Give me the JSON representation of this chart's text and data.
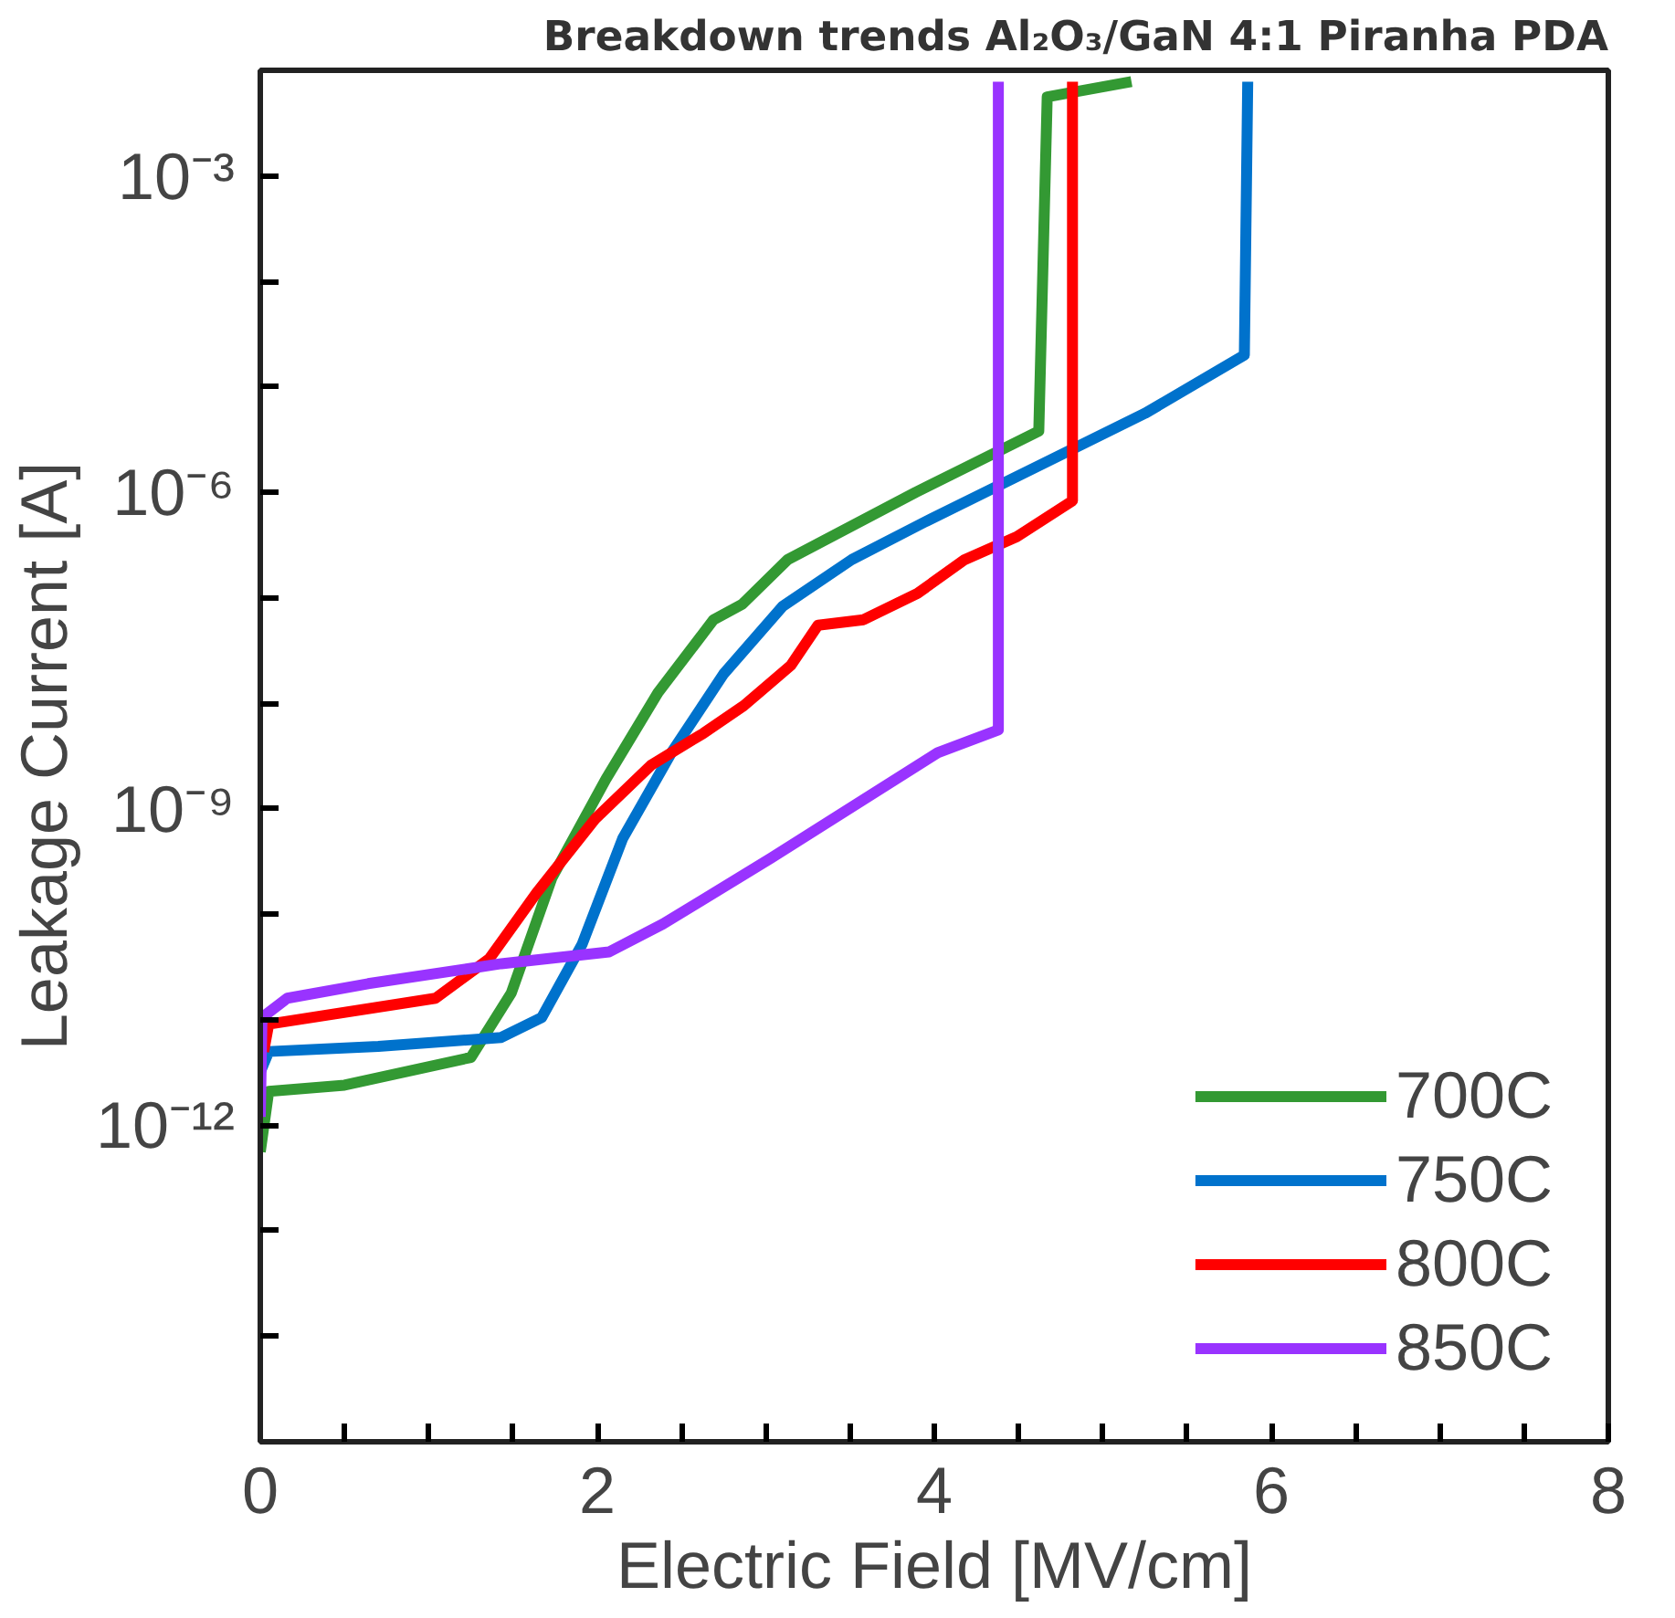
{
  "chart_data": {
    "type": "line",
    "title": "Breakdown trends Al₂O₃/GaN 4:1 Piranha PDA",
    "xlabel": "Electric Field [MV/cm]",
    "ylabel": "Leakage Current [A]",
    "log": "y",
    "xlim": [
      0,
      8
    ],
    "ylim": [
      1e-15,
      0.01
    ],
    "xticks": [
      0,
      {
        "value": 0.5,
        "label": null
      },
      {
        "value": 1,
        "label": null
      },
      {
        "value": 1.5,
        "label": null
      },
      2,
      {
        "value": 2.5,
        "label": null
      },
      {
        "value": 3,
        "label": null
      },
      {
        "value": 3.5,
        "label": null
      },
      4,
      {
        "value": 4.5,
        "label": null
      },
      {
        "value": 5,
        "label": null
      },
      {
        "value": 5.5,
        "label": null
      },
      6,
      {
        "value": 6.5,
        "label": null
      },
      {
        "value": 7,
        "label": null
      },
      {
        "value": 7.5,
        "label": null
      },
      8
    ],
    "yticks": [
      {
        "value": 1e-14,
        "label": null
      },
      {
        "value": 1e-13,
        "label": null
      },
      {
        "value": 1e-12,
        "label": "10⁻¹²"
      },
      {
        "value": 1e-11,
        "label": null
      },
      {
        "value": 1e-10,
        "label": null
      },
      {
        "value": 1e-09,
        "label": "10⁻⁹"
      },
      {
        "value": 1e-08,
        "label": null
      },
      {
        "value": 1e-07,
        "label": null
      },
      {
        "value": 1e-06,
        "label": "10⁻⁶"
      },
      {
        "value": 1e-05,
        "label": null
      },
      {
        "value": 0.0001,
        "label": null
      },
      {
        "value": 0.001,
        "label": "10⁻³"
      }
    ],
    "grid": false,
    "legend": "bottom right",
    "marker": "none",
    "line_style": "solid",
    "series": [
      {
        "name": "700C",
        "color": "#339933",
        "x": [
          0,
          0.05,
          0.5,
          1.25,
          1.49,
          1.73,
          2.05,
          2.36,
          2.69,
          2.86,
          3.13,
          3.89,
          4.62,
          4.67,
          5.17
        ],
        "values": [
          5.6e-13,
          2.1e-12,
          2.4e-12,
          4.4e-12,
          1.8e-11,
          2.2e-10,
          1.9e-09,
          1.26e-08,
          6.2e-08,
          8.7e-08,
          2.3e-07,
          1e-06,
          3.8e-06,
          0.0056,
          0.0078
        ]
      },
      {
        "name": "750C",
        "color": "#0072cc",
        "x": [
          0,
          0.05,
          0.7,
          1.43,
          1.67,
          1.91,
          2.15,
          2.44,
          2.75,
          3.1,
          3.51,
          3.94,
          5.25,
          5.84,
          5.86
        ],
        "values": [
          3.2e-12,
          5e-12,
          5.6e-12,
          6.8e-12,
          1.05e-11,
          5.2e-11,
          5.2e-10,
          3.4e-09,
          1.9e-08,
          8.3e-08,
          2.3e-07,
          5.2e-07,
          5.6e-06,
          2e-05,
          0.0078
        ]
      },
      {
        "name": "800C",
        "color": "#ff0000",
        "x": [
          0.02,
          0.05,
          1.04,
          1.36,
          1.64,
          1.99,
          2.32,
          2.63,
          2.87,
          3.15,
          3.31,
          3.58,
          3.9,
          4.18,
          4.49,
          4.82,
          4.82
        ],
        "values": [
          5e-12,
          9.1e-12,
          1.6e-11,
          3.8e-11,
          1.6e-10,
          8.1e-10,
          2.6e-09,
          5.2e-09,
          9.5e-09,
          2.3e-08,
          5.5e-08,
          6.2e-08,
          1.1e-07,
          2.3e-07,
          3.8e-07,
          8.3e-07,
          0.0078
        ]
      },
      {
        "name": "850C",
        "color": "#9933ff",
        "x": [
          0,
          0.01,
          0.16,
          0.64,
          1.43,
          2.07,
          2.39,
          3.03,
          4.02,
          4.38,
          4.38
        ],
        "values": [
          1.2e-12,
          1.05e-11,
          1.6e-11,
          2.2e-11,
          3.4e-11,
          4.4e-11,
          8.1e-11,
          3.4e-10,
          3.4e-09,
          5.6e-09,
          0.0078
        ]
      }
    ]
  }
}
